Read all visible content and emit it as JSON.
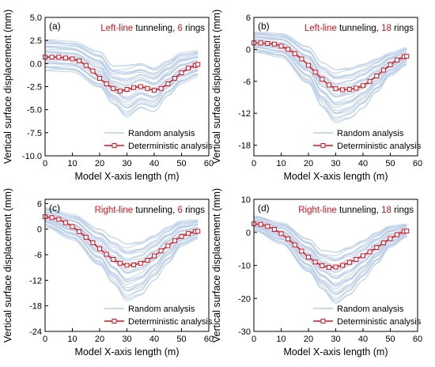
{
  "colors": {
    "random": "#b7cde6",
    "deterministic": "#e0101a",
    "highlight": "#e0101a",
    "axis": "#000000"
  },
  "chart_data": [
    {
      "type": "line",
      "panel_label": "(a)",
      "title_parts": [
        {
          "text": "Left-line",
          "highlight": true
        },
        {
          "text": " tunneling, ",
          "highlight": false
        },
        {
          "text": "6",
          "highlight": true
        },
        {
          "text": " rings",
          "highlight": false
        }
      ],
      "xlabel": "Model X-axis length (m)",
      "ylabel": "Vertical surface displacement (mm)",
      "xlim": [
        0,
        60
      ],
      "ylim": [
        -10,
        5
      ],
      "xticks": [
        0,
        10,
        20,
        30,
        40,
        50,
        60
      ],
      "xtick_labels": [
        "0",
        "10",
        "20",
        "30",
        "40",
        "50",
        "60"
      ],
      "yticks": [
        -10,
        -7.5,
        -5,
        -2.5,
        0,
        2.5,
        5
      ],
      "ytick_labels": [
        "-10.0",
        "-7.5",
        "-5.0",
        "-2.5",
        "0.0",
        "2.5",
        "5.0"
      ],
      "legend": [
        "Random analysis",
        "Deterministic analysis"
      ],
      "legend_position": "bottom-right",
      "random_band": {
        "x": [
          0,
          10,
          20,
          25,
          30,
          35,
          40,
          45,
          50,
          56
        ],
        "upper": [
          2.6,
          2.4,
          1.3,
          -0.3,
          -0.2,
          0.0,
          -0.5,
          0.3,
          1.2,
          1.4
        ],
        "lower": [
          -0.8,
          -0.9,
          -2.6,
          -4.5,
          -5.8,
          -4.8,
          -5.2,
          -3.5,
          -2.2,
          -1.4
        ]
      },
      "series": [
        {
          "name": "Deterministic analysis",
          "x": [
            0,
            2.5,
            5,
            7.5,
            10,
            12.5,
            15,
            17.5,
            20,
            22.5,
            25,
            27.5,
            30,
            32.5,
            35,
            37.5,
            40,
            42.5,
            45,
            47.5,
            50,
            52.5,
            55,
            56
          ],
          "y": [
            0.7,
            0.7,
            0.7,
            0.6,
            0.5,
            0.3,
            -0.2,
            -0.8,
            -1.6,
            -2.2,
            -2.7,
            -3.0,
            -2.8,
            -2.6,
            -2.5,
            -2.7,
            -2.9,
            -2.7,
            -2.2,
            -1.6,
            -1.0,
            -0.5,
            -0.2,
            -0.1
          ]
        }
      ]
    },
    {
      "type": "line",
      "panel_label": "(b)",
      "title_parts": [
        {
          "text": "Left-line",
          "highlight": true
        },
        {
          "text": " tunneling, ",
          "highlight": false
        },
        {
          "text": "18",
          "highlight": true
        },
        {
          "text": " rings",
          "highlight": false
        }
      ],
      "xlabel": "Model X-axis length (m)",
      "ylabel": "Vertical surface displacement (mm)",
      "xlim": [
        0,
        60
      ],
      "ylim": [
        -20,
        6
      ],
      "xticks": [
        0,
        10,
        20,
        30,
        40,
        50,
        60
      ],
      "xtick_labels": [
        "0",
        "10",
        "20",
        "30",
        "40",
        "50",
        "60"
      ],
      "yticks": [
        -18,
        -12,
        -6,
        0,
        6
      ],
      "ytick_labels": [
        "-18",
        "-12",
        "-6",
        "0",
        "6"
      ],
      "legend": [
        "Random analysis",
        "Deterministic analysis"
      ],
      "legend_position": "bottom-right",
      "random_band": {
        "x": [
          0,
          10,
          20,
          25,
          30,
          35,
          40,
          45,
          50,
          56
        ],
        "upper": [
          3.2,
          3.0,
          0.5,
          -2.5,
          -3.8,
          -3.5,
          -2.8,
          -1.8,
          -0.6,
          0.3
        ],
        "lower": [
          -0.5,
          -1.5,
          -6.5,
          -11,
          -13.8,
          -13,
          -11,
          -8,
          -5,
          -3
        ]
      },
      "series": [
        {
          "name": "Deterministic analysis",
          "x": [
            0,
            2.5,
            5,
            7.5,
            10,
            12.5,
            15,
            17.5,
            20,
            22.5,
            25,
            27.5,
            30,
            32.5,
            35,
            37.5,
            40,
            42.5,
            45,
            47.5,
            50,
            52.5,
            55,
            56
          ],
          "y": [
            1.2,
            1.2,
            1.1,
            1.0,
            0.6,
            0.0,
            -0.8,
            -1.8,
            -3.0,
            -4.3,
            -5.6,
            -6.7,
            -7.4,
            -7.6,
            -7.5,
            -7.3,
            -6.8,
            -6.0,
            -5.0,
            -3.9,
            -2.9,
            -2.0,
            -1.4,
            -1.3
          ]
        }
      ]
    },
    {
      "type": "line",
      "panel_label": "(c)",
      "title_parts": [
        {
          "text": "Right-line",
          "highlight": true
        },
        {
          "text": " tunneling, ",
          "highlight": false
        },
        {
          "text": "6",
          "highlight": true
        },
        {
          "text": " rings",
          "highlight": false
        }
      ],
      "xlabel": "Model X-axis length (m)",
      "ylabel": "Vertical surface displacement (mm)",
      "xlim": [
        0,
        60
      ],
      "ylim": [
        -24,
        7
      ],
      "xticks": [
        0,
        10,
        20,
        30,
        40,
        50,
        60
      ],
      "xtick_labels": [
        "0",
        "10",
        "20",
        "30",
        "40",
        "50",
        "60"
      ],
      "yticks": [
        -24,
        -18,
        -12,
        -6,
        0,
        6
      ],
      "ytick_labels": [
        "-24",
        "-18",
        "-12",
        "-6",
        "0",
        "6"
      ],
      "legend": [
        "Random analysis",
        "Deterministic analysis"
      ],
      "legend_position": "bottom-right",
      "random_band": {
        "x": [
          0,
          10,
          20,
          25,
          30,
          35,
          40,
          45,
          50,
          56
        ],
        "upper": [
          5.0,
          3.5,
          0.0,
          -2.0,
          -3.5,
          -3.0,
          -1.5,
          0.5,
          2.0,
          2.2
        ],
        "lower": [
          0.5,
          -2.5,
          -8.5,
          -13,
          -16.8,
          -15.5,
          -12,
          -8,
          -4,
          -2.3
        ]
      },
      "series": [
        {
          "name": "Deterministic analysis",
          "x": [
            0,
            2.5,
            5,
            7.5,
            10,
            12.5,
            15,
            17.5,
            20,
            22.5,
            25,
            27.5,
            30,
            32.5,
            35,
            37.5,
            40,
            42.5,
            45,
            47.5,
            50,
            52.5,
            55,
            56
          ],
          "y": [
            2.9,
            2.7,
            2.3,
            1.5,
            0.6,
            -0.6,
            -1.9,
            -3.2,
            -4.6,
            -5.9,
            -7.1,
            -8.0,
            -8.5,
            -8.4,
            -8.0,
            -7.3,
            -6.3,
            -5.1,
            -3.9,
            -2.7,
            -1.7,
            -1.0,
            -0.6,
            -0.5
          ]
        }
      ]
    },
    {
      "type": "line",
      "panel_label": "(d)",
      "title_parts": [
        {
          "text": "Right-line",
          "highlight": true
        },
        {
          "text": " tunneling, ",
          "highlight": false
        },
        {
          "text": "18",
          "highlight": true
        },
        {
          "text": " rings",
          "highlight": false
        }
      ],
      "xlabel": "Model X-axis length (m)",
      "ylabel": "Vertical surface displacement (mm)",
      "xlim": [
        0,
        60
      ],
      "ylim": [
        -30,
        10
      ],
      "xticks": [
        0,
        10,
        20,
        30,
        40,
        50,
        60
      ],
      "xtick_labels": [
        "0",
        "10",
        "20",
        "30",
        "40",
        "50",
        "60"
      ],
      "yticks": [
        -30,
        -20,
        -10,
        0,
        10
      ],
      "ytick_labels": [
        "-30",
        "-20",
        "-10",
        "0",
        "10"
      ],
      "legend": [
        "Random analysis",
        "Deterministic analysis"
      ],
      "legend_position": "bottom-right",
      "random_band": {
        "x": [
          0,
          10,
          20,
          25,
          30,
          35,
          40,
          45,
          50,
          56
        ],
        "upper": [
          5.0,
          3.0,
          -2.0,
          -5.5,
          -6.0,
          -4.5,
          -2.5,
          0.0,
          2.0,
          2.5
        ],
        "lower": [
          0.5,
          -3.5,
          -12,
          -17.5,
          -21.5,
          -19,
          -14.5,
          -9.5,
          -4.5,
          -1.5
        ]
      },
      "series": [
        {
          "name": "Deterministic analysis",
          "x": [
            0,
            2.5,
            5,
            7.5,
            10,
            12.5,
            15,
            17.5,
            20,
            22.5,
            25,
            27.5,
            30,
            32.5,
            35,
            37.5,
            40,
            42.5,
            45,
            47.5,
            50,
            52.5,
            55,
            56
          ],
          "y": [
            2.6,
            2.4,
            1.8,
            0.9,
            -0.4,
            -2.0,
            -3.8,
            -5.7,
            -7.5,
            -9.0,
            -10.1,
            -10.6,
            -10.5,
            -10.0,
            -9.1,
            -8.2,
            -7.1,
            -5.9,
            -4.6,
            -3.2,
            -1.9,
            -0.7,
            0.3,
            0.4
          ]
        }
      ]
    }
  ]
}
